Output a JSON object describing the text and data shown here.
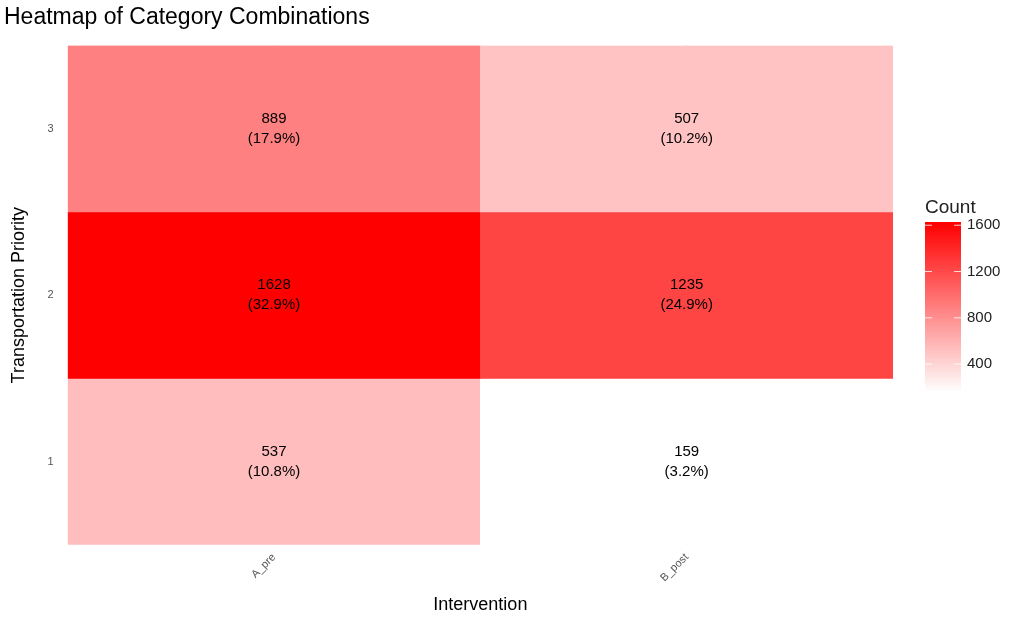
{
  "chart_data": {
    "type": "heatmap",
    "title": "Heatmap of Category Combinations",
    "xlabel": "Intervention",
    "ylabel": "Transportation Priority",
    "clabel": "Count",
    "categories": [
      "A_pre",
      "B_post"
    ],
    "y_categories": [
      "3",
      "2",
      "1"
    ],
    "cells": [
      [
        889,
        507
      ],
      [
        1628,
        1235
      ],
      [
        537,
        159
      ]
    ],
    "cell_labels": [
      [
        "889\n(17.9%)",
        "507\n(10.2%)"
      ],
      [
        "1628\n(32.9%)",
        "1235\n(24.9%)"
      ],
      [
        "537\n(10.8%)",
        "159\n(3.2%)"
      ]
    ],
    "colors": [
      "#ffffff",
      "#ff0000"
    ],
    "clim": [
      159,
      1628
    ],
    "cticks": [
      400,
      800,
      1200,
      1600
    ],
    "grid": true
  }
}
